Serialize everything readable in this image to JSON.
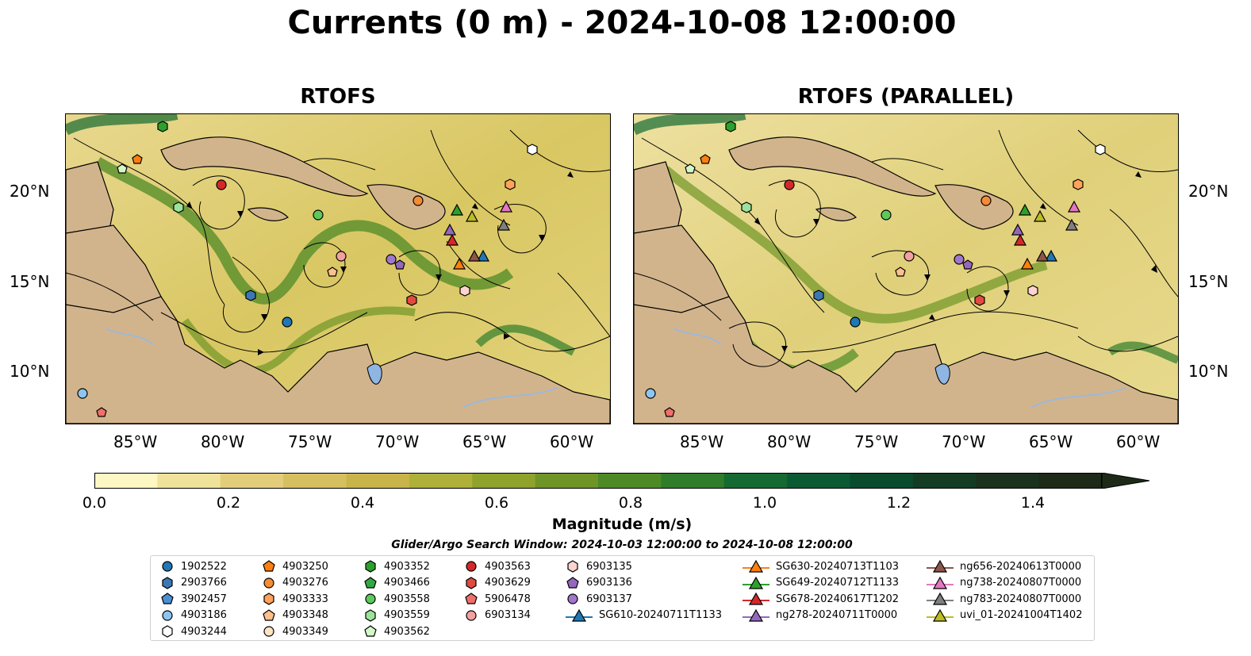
{
  "title": "Currents (0 m) - 2024-10-08 12:00:00",
  "panels": [
    {
      "title": "RTOFS"
    },
    {
      "title": "RTOFS (PARALLEL)"
    }
  ],
  "lat_ticks": [
    "20°N",
    "15°N",
    "10°N"
  ],
  "lon_ticks": [
    "85°W",
    "80°W",
    "75°W",
    "70°W",
    "65°W",
    "60°W"
  ],
  "colorbar": {
    "label": "Magnitude (m/s)",
    "ticks": [
      "0.0",
      "0.2",
      "0.4",
      "0.6",
      "0.8",
      "1.0",
      "1.2",
      "1.4"
    ],
    "colors": [
      "#fdf7c4",
      "#f0e29a",
      "#e3cd7a",
      "#d6bf5f",
      "#c9b44a",
      "#aeb03a",
      "#8fa32c",
      "#6f9526",
      "#4d8a25",
      "#2f7d2a",
      "#146a31",
      "#0b5a33",
      "#0a4a2d",
      "#143c24",
      "#1a321d",
      "#1d2a18"
    ],
    "extend": "max"
  },
  "search_window": "Glider/Argo Search Window: 2024-10-03 12:00:00 to 2024-10-08 12:00:00",
  "legend": [
    {
      "label": "1902522",
      "marker": "circle",
      "color": "#1f77b4"
    },
    {
      "label": "2903766",
      "marker": "hexagon",
      "color": "#3a78b5"
    },
    {
      "label": "3902457",
      "marker": "pentagon",
      "color": "#4a8fd4"
    },
    {
      "label": "4903186",
      "marker": "circle",
      "color": "#8ec5f0"
    },
    {
      "label": "4903244",
      "marker": "hexagon-outline",
      "color": "#ffffff"
    },
    {
      "label": "4903250",
      "marker": "pentagon",
      "color": "#ff7f0e"
    },
    {
      "label": "4903276",
      "marker": "circle",
      "color": "#f58c35"
    },
    {
      "label": "4903333",
      "marker": "hexagon",
      "color": "#ffa25a"
    },
    {
      "label": "4903348",
      "marker": "pentagon",
      "color": "#ffc08a"
    },
    {
      "label": "4903349",
      "marker": "circle",
      "color": "#ffe4c4"
    },
    {
      "label": "4903352",
      "marker": "hexagon",
      "color": "#2ca02c"
    },
    {
      "label": "4903466",
      "marker": "pentagon",
      "color": "#33a842"
    },
    {
      "label": "4903558",
      "marker": "circle",
      "color": "#5cc95c"
    },
    {
      "label": "4903559",
      "marker": "hexagon",
      "color": "#9be39b"
    },
    {
      "label": "4903562",
      "marker": "pentagon",
      "color": "#d4f7c8"
    },
    {
      "label": "4903563",
      "marker": "circle",
      "color": "#d62728"
    },
    {
      "label": "4903629",
      "marker": "hexagon",
      "color": "#e04a3f"
    },
    {
      "label": "5906478",
      "marker": "pentagon",
      "color": "#ef6f6a"
    },
    {
      "label": "6903134",
      "marker": "circle",
      "color": "#f5a0a0"
    },
    {
      "label": "6903135",
      "marker": "hexagon",
      "color": "#fcd3cf"
    },
    {
      "label": "6903136",
      "marker": "pentagon",
      "color": "#9467bd"
    },
    {
      "label": "6903137",
      "marker": "circle",
      "color": "#a077cc"
    },
    {
      "label": "SG610-20240711T1133",
      "marker": "triangle-line",
      "color": "#1f77b4"
    },
    {
      "label": "SG630-20240713T1103",
      "marker": "triangle-line",
      "color": "#ff7f0e"
    },
    {
      "label": "SG649-20240712T1133",
      "marker": "triangle-line",
      "color": "#2ca02c"
    },
    {
      "label": "SG678-20240617T1202",
      "marker": "triangle-line",
      "color": "#d62728"
    },
    {
      "label": "ng278-20240711T0000",
      "marker": "triangle-line",
      "color": "#9467bd"
    },
    {
      "label": "ng656-20240613T0000",
      "marker": "triangle-line",
      "color": "#8c564b"
    },
    {
      "label": "ng738-20240807T0000",
      "marker": "triangle-line",
      "color": "#e377c2"
    },
    {
      "label": "ng783-20240807T0000",
      "marker": "triangle-line",
      "color": "#7f7f7f"
    },
    {
      "label": "uvi_01-20241004T1402",
      "marker": "triangle-line",
      "color": "#bcbd22"
    }
  ],
  "colors": {
    "land": "#d2b48c",
    "lake": "#8fb5e2",
    "river": "#9db8d9"
  }
}
